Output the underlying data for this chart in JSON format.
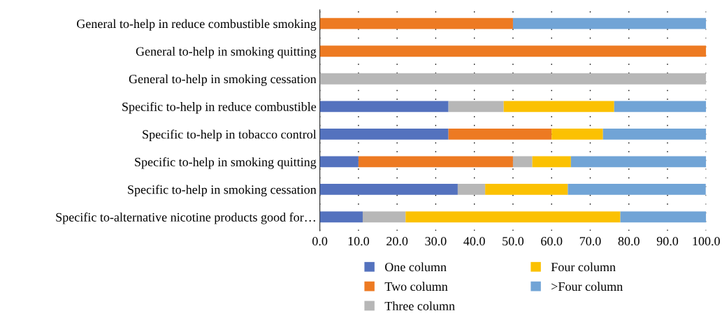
{
  "chart_data": {
    "type": "bar",
    "orientation": "horizontal",
    "stacked": true,
    "categories": [
      "General to-help in reduce combustible smoking",
      "General to-help in smoking quitting",
      "General to-help in smoking cessation",
      "Specific to-help in reduce combustible",
      "Specific to-help in tobacco control",
      "Specific to-help in smoking quitting",
      "Specific to-help in smoking cessation",
      "Specific to-alternative nicotine products good for…"
    ],
    "series": [
      {
        "name": "One column",
        "color": "#5472be",
        "values": [
          0,
          0,
          0,
          33.3,
          33.3,
          10.0,
          35.7,
          11.1
        ]
      },
      {
        "name": "Two column",
        "color": "#ed7a22",
        "values": [
          50.0,
          100.0,
          0,
          0,
          26.7,
          40.0,
          0,
          0
        ]
      },
      {
        "name": "Three column",
        "color": "#b7b7b7",
        "values": [
          0,
          0,
          100.0,
          14.3,
          0,
          5.0,
          7.1,
          11.1
        ]
      },
      {
        "name": "Four column",
        "color": "#fbc102",
        "values": [
          0,
          0,
          0,
          28.6,
          13.3,
          10.0,
          21.4,
          55.6
        ]
      },
      {
        "name": ">Four column",
        "color": "#71a4d6",
        "values": [
          50.0,
          0,
          0,
          23.8,
          26.7,
          35.0,
          35.7,
          22.2
        ]
      }
    ],
    "xlim": [
      0,
      100
    ],
    "xticks": [
      {
        "value": 0,
        "label": "0.0"
      },
      {
        "value": 10,
        "label": "10.0"
      },
      {
        "value": 20,
        "label": "20.0"
      },
      {
        "value": 30,
        "label": "30.0"
      },
      {
        "value": 40,
        "label": "40.0"
      },
      {
        "value": 50,
        "label": "50.0"
      },
      {
        "value": 60,
        "label": "60.0"
      },
      {
        "value": 70,
        "label": "70.0"
      },
      {
        "value": 80,
        "label": "80.0"
      },
      {
        "value": 90,
        "label": "90.0"
      },
      {
        "value": 100,
        "label": "100.0"
      }
    ],
    "grid": "x",
    "legend": "bottom"
  }
}
